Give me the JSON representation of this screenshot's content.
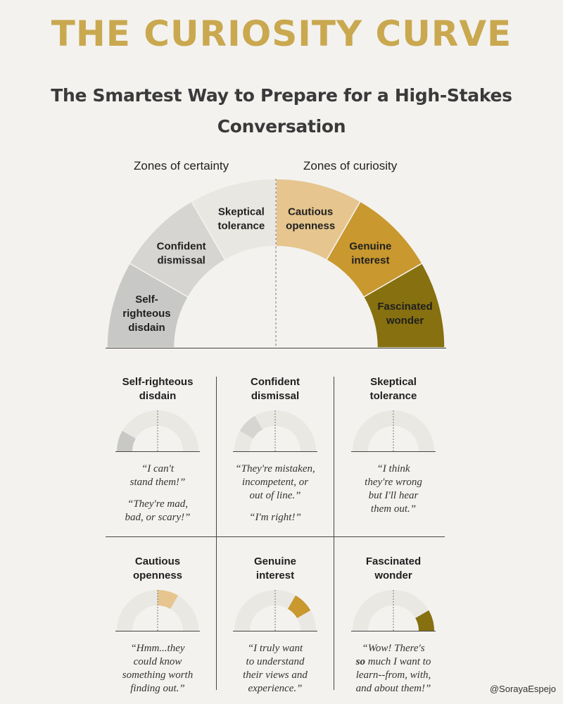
{
  "title": "THE CURIOSITY CURVE",
  "subtitle": "The Smartest Way to Prepare for a High-Stakes Conversation",
  "zones": {
    "certainty_label": "Zones of certainty",
    "curiosity_label": "Zones of curiosity"
  },
  "segments": [
    {
      "label": "Self-\nrighteous\ndisdain",
      "color": "#c8c8c6"
    },
    {
      "label": "Confident\ndismissal",
      "color": "#d6d5d2"
    },
    {
      "label": "Skeptical\ntolerance",
      "color": "#e8e7e1"
    },
    {
      "label": "Cautious\nopenness",
      "color": "#e6c58e"
    },
    {
      "label": "Genuine\ninterest",
      "color": "#c9982f"
    },
    {
      "label": "Fascinated\nwonder",
      "color": "#86700f"
    }
  ],
  "cards": [
    {
      "title": "Self-righteous\ndisdain",
      "quote": "“I can't\nstand them!”",
      "quote2": "“They're mad,\nbad, or scary!”"
    },
    {
      "title": "Confident\ndismissal",
      "quote": "“They're mistaken,\nincompetent, or\nout of line.”",
      "quote2": "“I'm right!”"
    },
    {
      "title": "Skeptical\ntolerance",
      "quote": "“I think\nthey're wrong\nbut I'll hear\nthem out.”",
      "quote2": ""
    },
    {
      "title": "Cautious\nopenness",
      "quote": "“Hmm...they\ncould know\nsomething worth\nfinding out.”",
      "quote2": ""
    },
    {
      "title": "Genuine\ninterest",
      "quote": "“I truly want\nto understand\ntheir views and\nexperience.”",
      "quote2": ""
    },
    {
      "title": "Fascinated\nwonder",
      "quote_before": "“Wow! There's\n",
      "quote_bold": "so",
      "quote_after": " much I want to\nlearn--from, with,\nand about them!”",
      "quote2": ""
    }
  ],
  "credit": "@SorayaEspejo"
}
